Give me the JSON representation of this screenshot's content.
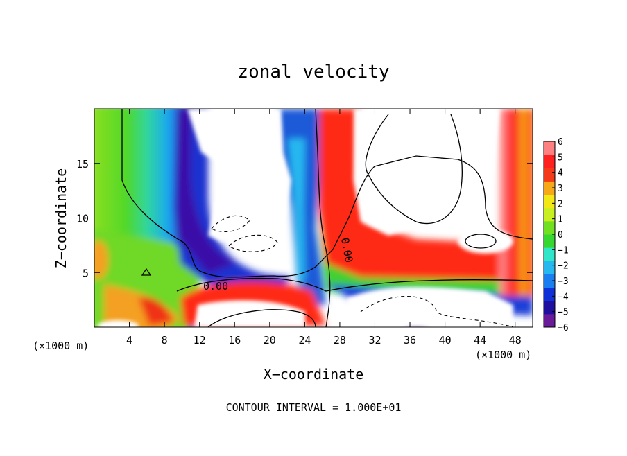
{
  "chart_data": {
    "type": "heatmap",
    "title": "zonal velocity",
    "xlabel": "X−coordinate",
    "ylabel": "Z−coordinate",
    "x_unit": "(×1000 m)",
    "y_unit": "(×1000 m)",
    "xlim": [
      0,
      50
    ],
    "ylim": [
      0,
      20
    ],
    "x_ticks": [
      4,
      8,
      12,
      16,
      20,
      24,
      28,
      32,
      36,
      40,
      44,
      48
    ],
    "x_tick_labels": [
      "4",
      "8",
      "12",
      "16",
      "20",
      "24",
      "28",
      "32",
      "36",
      "40",
      "44",
      "48"
    ],
    "y_ticks": [
      5,
      10,
      15
    ],
    "y_tick_labels": [
      "5",
      "10",
      "15"
    ],
    "colorbar": {
      "min": -6,
      "max": 6,
      "ticks": [
        "6",
        "5",
        "4",
        "3",
        "2",
        "1",
        "0",
        "−1",
        "−2",
        "−3",
        "−4",
        "−5",
        "−6"
      ],
      "colors": [
        "#6a1b9a",
        "#2010a0",
        "#1030d8",
        "#1a7ef0",
        "#28b8f0",
        "#30e6c8",
        "#36d830",
        "#70e020",
        "#c8f020",
        "#f2e818",
        "#f6a818",
        "#f43a18",
        "#ff2020",
        "#ff8080"
      ]
    },
    "contour_label": "0.00",
    "footer": "CONTOUR INTERVAL = 1.000E+01",
    "field": [
      {
        "x": 2,
        "z": 16,
        "u": 0.8
      },
      {
        "x": 7,
        "z": 15,
        "u": -2.5
      },
      {
        "x": 10,
        "z": 16,
        "u": -5
      },
      {
        "x": 16,
        "z": 15,
        "u": -6.5
      },
      {
        "x": 20,
        "z": 16,
        "u": -6.5
      },
      {
        "x": 24,
        "z": 12,
        "u": -4
      },
      {
        "x": 27,
        "z": 15,
        "u": 4
      },
      {
        "x": 40,
        "z": 13,
        "u": 7
      },
      {
        "x": 47,
        "z": 14,
        "u": 5
      },
      {
        "x": 20,
        "z": 2,
        "u": 6.5
      },
      {
        "x": 36,
        "z": 2,
        "u": -7
      }
    ]
  }
}
